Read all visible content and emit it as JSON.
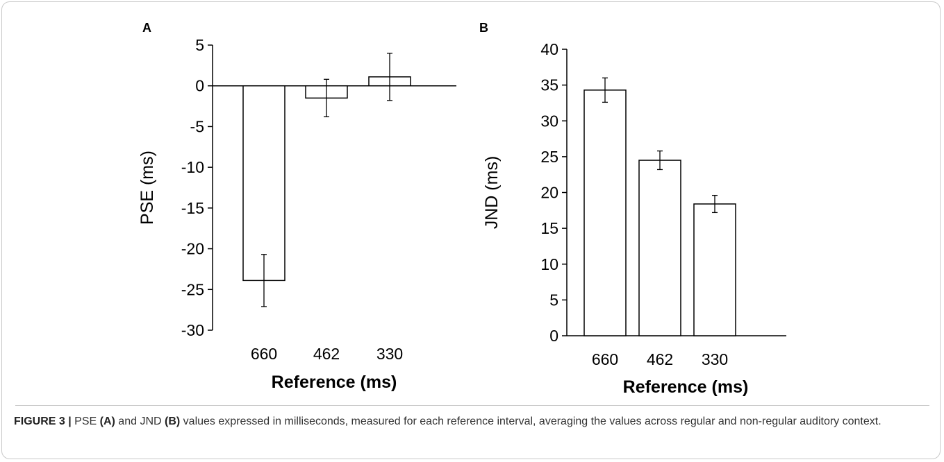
{
  "figure": {
    "caption_label": "FIGURE 3 |",
    "caption_parts": [
      {
        "text": "PSE ",
        "bold": false
      },
      {
        "text": "(A)",
        "bold": true
      },
      {
        "text": " and JND ",
        "bold": false
      },
      {
        "text": "(B)",
        "bold": true
      },
      {
        "text": " values expressed in milliseconds, measured for each reference interval, averaging the values across regular and non-regular auditory context.",
        "bold": false
      }
    ]
  },
  "chart_data": [
    {
      "panel": "A",
      "type": "bar",
      "categories": [
        "660",
        "462",
        "330"
      ],
      "values": [
        -23.9,
        -1.5,
        1.1
      ],
      "errors": [
        3.2,
        2.3,
        2.9
      ],
      "ylim": [
        -30,
        5
      ],
      "yticks": [
        "5",
        "0",
        "-5",
        "-10",
        "-15",
        "-20",
        "-25",
        "-30"
      ],
      "ylabel": "PSE (ms)",
      "xlabel": "Reference (ms)",
      "grid": false
    },
    {
      "panel": "B",
      "type": "bar",
      "categories": [
        "660",
        "462",
        "330"
      ],
      "values": [
        34.3,
        24.5,
        18.4
      ],
      "errors": [
        1.7,
        1.3,
        1.2
      ],
      "ylim": [
        0,
        40
      ],
      "yticks": [
        "40",
        "35",
        "30",
        "25",
        "20",
        "15",
        "10",
        "5",
        "0"
      ],
      "ylabel": "JND (ms)",
      "xlabel": "Reference (ms)",
      "grid": false
    }
  ]
}
